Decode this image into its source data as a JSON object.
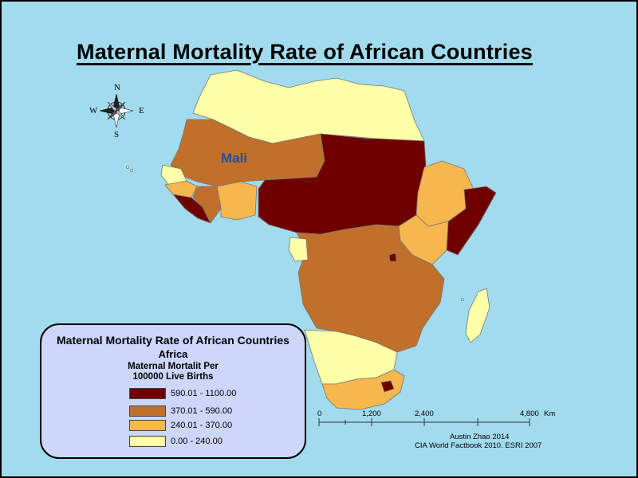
{
  "title": "Maternal Mortality Rate of African Countries",
  "highlight_label": "Mali",
  "compass": {
    "n": "N",
    "s": "S",
    "e": "E",
    "w": "W"
  },
  "legend": {
    "title": "Maternal Mortality Rate of African Countries",
    "subtitle": "Africa",
    "field_line1": "Maternal Mortalit Per",
    "field_line2": "100000 Live Births",
    "classes": [
      {
        "label": "590.01 - 1100.00",
        "color": "#6f0000"
      },
      {
        "label": "370.01 - 590.00",
        "color": "#c0702a"
      },
      {
        "label": "240.01 - 370.00",
        "color": "#f5b74e"
      },
      {
        "label": "0.00 - 240.00",
        "color": "#ffffa8"
      }
    ]
  },
  "scalebar": {
    "ticks": [
      "0",
      "1,200",
      "2,400",
      "4,800"
    ],
    "unit": "Km"
  },
  "credits": {
    "author": "Austin Zhao 2014",
    "source": "CIA World Factbook 2010. ESRI 2007"
  },
  "colors": {
    "ocean": "#a2dbee",
    "legend_bg": "#cdd6fb",
    "label_blue": "#1e4fa0"
  }
}
